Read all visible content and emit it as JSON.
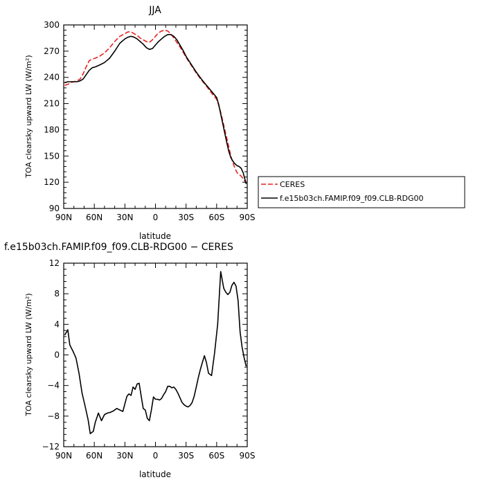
{
  "chart_data": [
    {
      "type": "line",
      "title": "JJA",
      "xlabel": "latitude",
      "ylabel": "TOA clearsky upward LW (W/m²)",
      "xlim": [
        90,
        -90
      ],
      "ylim": [
        90,
        300
      ],
      "x_ticks": [
        {
          "value": 90,
          "label": "90N"
        },
        {
          "value": 60,
          "label": "60N"
        },
        {
          "value": 30,
          "label": "30N"
        },
        {
          "value": 0,
          "label": "0"
        },
        {
          "value": -30,
          "label": "30S"
        },
        {
          "value": -60,
          "label": "60S"
        },
        {
          "value": -90,
          "label": "90S"
        }
      ],
      "y_ticks": [
        90,
        120,
        150,
        180,
        210,
        240,
        270,
        300
      ],
      "grid": false,
      "legend_placement": "right",
      "series": [
        {
          "name": "CERES",
          "color": "#e8201c",
          "style": "dashed",
          "x": [
            89,
            86,
            83,
            80,
            77,
            74,
            71,
            68,
            65,
            62,
            59,
            55,
            50,
            45,
            40,
            35,
            30,
            27,
            24,
            21,
            18,
            15,
            12,
            9,
            6,
            3,
            0,
            -3,
            -6,
            -9,
            -12,
            -15,
            -18,
            -21,
            -24,
            -27,
            -30,
            -35,
            -40,
            -45,
            -50,
            -55,
            -60,
            -62,
            -64,
            -66,
            -68,
            -70,
            -72,
            -74,
            -76,
            -78,
            -80,
            -82,
            -84,
            -86,
            -89
          ],
          "values": [
            231,
            232,
            234,
            235,
            236,
            238,
            244,
            252,
            259,
            261,
            262,
            264,
            268,
            274,
            281,
            287,
            290,
            292,
            292,
            290,
            288,
            285,
            283,
            281,
            280,
            283,
            287,
            291,
            293,
            294,
            293,
            290,
            285,
            280,
            275,
            269,
            263,
            254,
            245,
            237,
            230,
            222,
            215,
            208,
            200,
            190,
            180,
            170,
            160,
            150,
            142,
            136,
            131,
            129,
            127,
            124,
            119
          ]
        },
        {
          "name": "f.e15b03ch.FAMIP.f09_f09.CLB-RDG00",
          "color": "#000000",
          "style": "solid",
          "x": [
            89,
            86,
            83,
            80,
            77,
            74,
            71,
            68,
            65,
            62,
            59,
            55,
            50,
            45,
            40,
            35,
            30,
            27,
            24,
            21,
            18,
            15,
            12,
            9,
            6,
            3,
            0,
            -3,
            -6,
            -9,
            -12,
            -15,
            -18,
            -21,
            -24,
            -27,
            -30,
            -35,
            -40,
            -45,
            -50,
            -55,
            -60,
            -62,
            -64,
            -66,
            -68,
            -70,
            -72,
            -74,
            -76,
            -78,
            -80,
            -82,
            -84,
            -86,
            -89
          ],
          "values": [
            234,
            235,
            235,
            235,
            235,
            236,
            238,
            243,
            248,
            251,
            252,
            254,
            257,
            262,
            270,
            279,
            284,
            286,
            287,
            286,
            284,
            281,
            278,
            274,
            272,
            273,
            277,
            281,
            284,
            287,
            289,
            289,
            287,
            283,
            277,
            271,
            264,
            255,
            246,
            238,
            231,
            224,
            217,
            209,
            198,
            187,
            176,
            165,
            155,
            148,
            144,
            141,
            139,
            138,
            136,
            131,
            118
          ]
        }
      ]
    },
    {
      "type": "line",
      "title": "f.e15b03ch.FAMIP.f09_f09.CLB-RDG00 − CERES",
      "xlabel": "latitude",
      "ylabel": "TOA clearsky upward LW (W/m²)",
      "xlim": [
        90,
        -90
      ],
      "ylim": [
        -12,
        12
      ],
      "x_ticks": [
        {
          "value": 90,
          "label": "90N"
        },
        {
          "value": 60,
          "label": "60N"
        },
        {
          "value": 30,
          "label": "30N"
        },
        {
          "value": 0,
          "label": "0"
        },
        {
          "value": -30,
          "label": "30S"
        },
        {
          "value": -60,
          "label": "60S"
        },
        {
          "value": -90,
          "label": "90S"
        }
      ],
      "y_ticks": [
        -12,
        -8,
        -4,
        0,
        4,
        8,
        12
      ],
      "grid": false,
      "series": [
        {
          "color": "#000000",
          "style": "solid",
          "x": [
            89,
            86,
            84,
            81,
            78,
            75,
            72,
            69,
            66,
            64,
            61,
            59,
            56,
            53,
            50,
            47,
            44,
            41,
            38,
            35,
            32,
            30,
            28,
            26,
            24,
            22,
            20,
            18,
            16,
            14,
            12,
            10,
            8,
            6,
            4,
            2,
            0,
            -2,
            -4,
            -6,
            -8,
            -10,
            -12,
            -14,
            -16,
            -18,
            -20,
            -22,
            -24,
            -26,
            -28,
            -30,
            -32,
            -34,
            -36,
            -38,
            -40,
            -42,
            -44,
            -46,
            -48,
            -50,
            -52,
            -55,
            -58,
            -61,
            -64,
            -67,
            -69,
            -71,
            -73,
            -75,
            -77,
            -79,
            -81,
            -83,
            -85,
            -87,
            -89
          ],
          "values": [
            2.6,
            3.3,
            1.3,
            0.5,
            -0.4,
            -2.4,
            -5.0,
            -6.7,
            -8.5,
            -10.3,
            -10.0,
            -8.8,
            -7.6,
            -8.6,
            -7.8,
            -7.6,
            -7.5,
            -7.3,
            -7.0,
            -7.2,
            -7.4,
            -6.4,
            -5.4,
            -5.1,
            -5.3,
            -4.2,
            -4.5,
            -3.8,
            -3.7,
            -5.4,
            -7.0,
            -7.2,
            -8.3,
            -8.6,
            -7.2,
            -5.5,
            -5.8,
            -5.8,
            -5.9,
            -5.7,
            -5.2,
            -4.8,
            -4.1,
            -4.1,
            -4.3,
            -4.2,
            -4.5,
            -5.0,
            -5.6,
            -6.2,
            -6.5,
            -6.7,
            -6.8,
            -6.6,
            -6.2,
            -5.4,
            -4.2,
            -3.0,
            -1.9,
            -1.0,
            -0.1,
            -1.0,
            -2.4,
            -2.7,
            0.3,
            4.0,
            10.9,
            8.7,
            8.2,
            7.9,
            8.2,
            9.1,
            9.5,
            9.0,
            7.1,
            3.0,
            1.0,
            -0.4,
            -1.5
          ]
        }
      ]
    }
  ]
}
